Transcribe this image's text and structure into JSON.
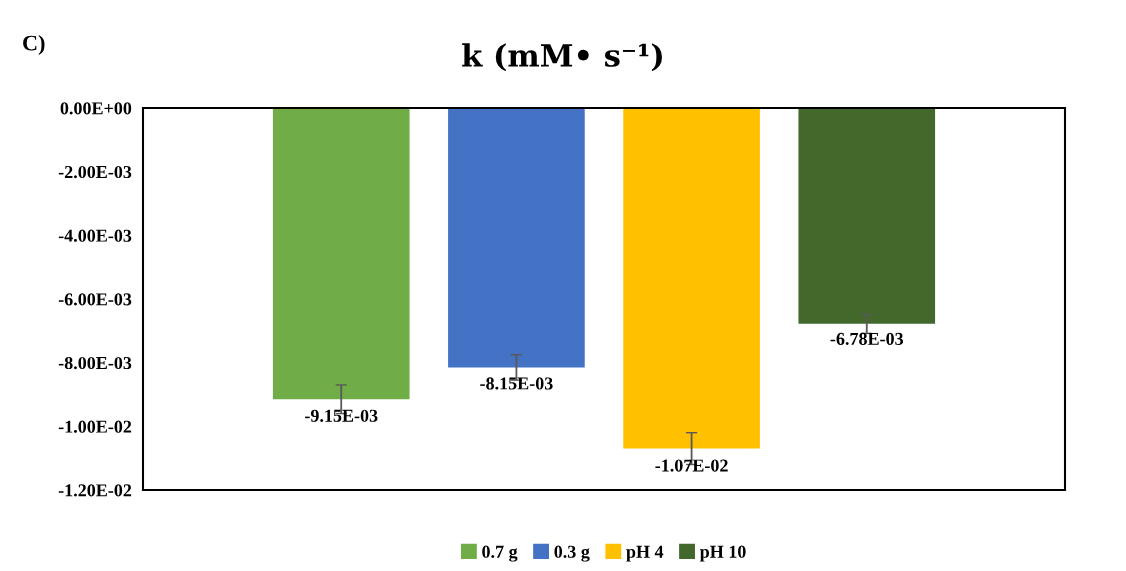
{
  "chart_data": {
    "type": "bar",
    "title": "k (mM• s⁻¹)",
    "annotations": [
      "C)"
    ],
    "categories": [
      null
    ],
    "series": [
      {
        "name": "0.7 g",
        "color": "#70ad47",
        "values": [
          -0.00915
        ],
        "errors": [
          0.00045
        ],
        "value_labels": [
          "-9.15E-03"
        ]
      },
      {
        "name": "0.3 g",
        "color": "#4472c4",
        "values": [
          -0.00815
        ],
        "errors": [
          0.0004
        ],
        "value_labels": [
          "-8.15E-03"
        ]
      },
      {
        "name": "pH 4",
        "color": "#ffc000",
        "values": [
          -0.0107
        ],
        "errors": [
          0.0005
        ],
        "value_labels": [
          "-1.07E-02"
        ]
      },
      {
        "name": "pH 10",
        "color": "#43682b",
        "values": [
          -0.00678
        ],
        "errors": [
          0.0003
        ],
        "value_labels": [
          "-6.78E-03"
        ]
      }
    ],
    "ylim": [
      -0.012,
      0
    ],
    "yticks": [
      {
        "value": 0,
        "label": "0.00E+00"
      },
      {
        "value": -0.002,
        "label": "-2.00E-03"
      },
      {
        "value": -0.004,
        "label": "-4.00E-03"
      },
      {
        "value": -0.006,
        "label": "-6.00E-03"
      },
      {
        "value": -0.008,
        "label": "-8.00E-03"
      },
      {
        "value": -0.01,
        "label": "-1.00E-02"
      },
      {
        "value": -0.012,
        "label": "-1.20E-02"
      }
    ],
    "tick_labels": "y",
    "grid": false,
    "legend": "bottom"
  }
}
